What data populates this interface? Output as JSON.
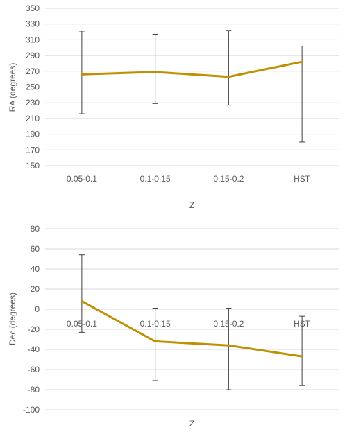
{
  "chart_data": [
    {
      "type": "line",
      "xlabel": "Z",
      "ylabel": "RA (degrees)",
      "categories": [
        "0.05-0.1",
        "0.1-0.15",
        "0.15-0.2",
        "HST"
      ],
      "values": [
        266,
        269,
        263,
        282
      ],
      "error_low": [
        216,
        229,
        227,
        180
      ],
      "error_high": [
        321,
        317,
        322,
        302
      ],
      "ylim": [
        150,
        350
      ],
      "yticks": [
        150,
        170,
        190,
        210,
        230,
        250,
        270,
        290,
        310,
        330,
        350
      ],
      "grid": true,
      "line_color": "#bf9000"
    },
    {
      "type": "line",
      "xlabel": "Z",
      "ylabel": "Dec (degrees)",
      "categories": [
        "0.05-0.1",
        "0.1-0.15",
        "0.15-0.2",
        "HST"
      ],
      "values": [
        8,
        -32,
        -36,
        -47
      ],
      "error_low": [
        -23,
        -71,
        -80,
        -76
      ],
      "error_high": [
        54,
        1,
        1,
        -7
      ],
      "ylim": [
        -100,
        80
      ],
      "yticks": [
        -100,
        -80,
        -60,
        -40,
        -20,
        0,
        20,
        40,
        60,
        80
      ],
      "grid": true,
      "line_color": "#bf9000"
    }
  ]
}
